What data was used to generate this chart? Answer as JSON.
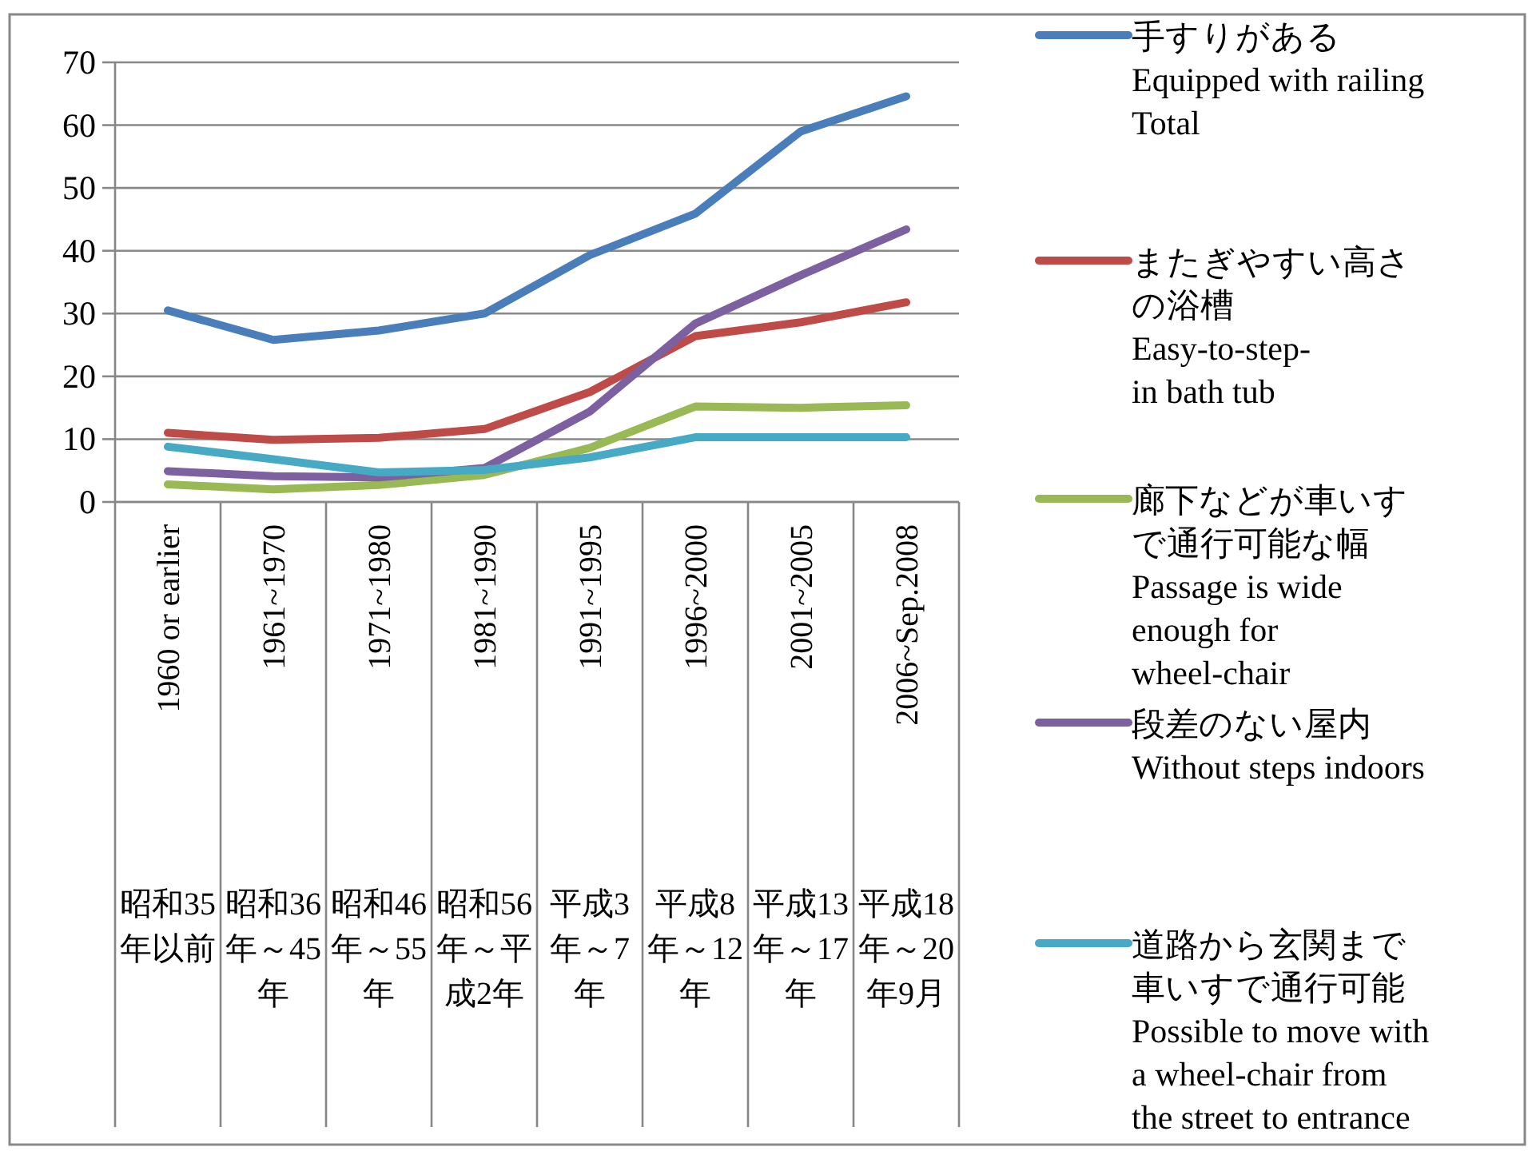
{
  "chart_data": {
    "type": "line",
    "categories": [
      "1960 or earlier",
      "1961~1970",
      "1971~1980",
      "1981~1990",
      "1991~1995",
      "1996~2000",
      "2001~2005",
      "2006~Sep.2008"
    ],
    "annotations": [
      "昭和35年以前",
      "昭和36年～45年",
      "昭和46年～55年",
      "昭和56年～平成2年",
      "平成3年～7年",
      "平成8年～12年",
      "平成13年～17年",
      "平成18年～20年9月"
    ],
    "series": [
      {
        "name": "手すりがある\nEquipped with railing\nTotal",
        "color": "#4a7ebb",
        "values": [
          30.5,
          25.8,
          27.3,
          30.0,
          39.3,
          45.9,
          59.0,
          64.6
        ]
      },
      {
        "name": "またぎやすい高さの浴槽\nEasy-to-step-\nin bath tub",
        "color": "#be4b48",
        "values": [
          11.0,
          9.9,
          10.2,
          11.6,
          17.5,
          26.4,
          28.6,
          31.8
        ]
      },
      {
        "name": "廊下などが車いすで通行可能な幅\nPassage is wide\nenough for\nwheel-chair",
        "color": "#98b954",
        "values": [
          2.8,
          2.0,
          2.7,
          4.3,
          8.6,
          15.2,
          15.0,
          15.4
        ]
      },
      {
        "name": "段差のない屋内\nWithout steps indoors",
        "color": "#7d60a0",
        "values": [
          4.9,
          4.1,
          3.9,
          5.4,
          14.4,
          28.4,
          36.1,
          43.4
        ]
      },
      {
        "name": "道路から玄関まで車いすで通行可能\nPossible to move with\na wheel-chair from\nthe street to entrance",
        "color": "#46aac5",
        "values": [
          8.8,
          6.8,
          4.7,
          5.1,
          7.1,
          10.3,
          10.3,
          10.3
        ]
      }
    ],
    "ylim": [
      0,
      70
    ],
    "yticks": [
      0,
      10,
      20,
      30,
      40,
      50,
      60,
      70
    ],
    "grid": "y",
    "legend": "right",
    "marker": "none",
    "line_style": "solid"
  }
}
